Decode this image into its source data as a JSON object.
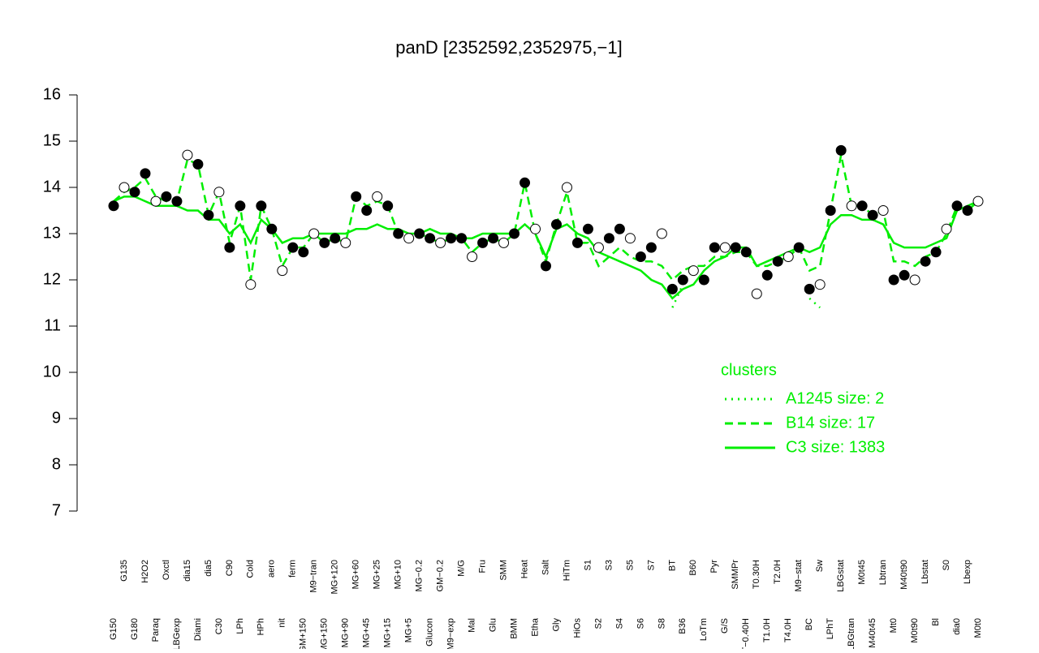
{
  "chart_data": {
    "type": "line",
    "title": "panD [2352592,2352975,−1]",
    "categories": [
      "G150",
      "G135",
      "G180",
      "H2O2",
      "Paraq",
      "Oxctl",
      "LBGexp",
      "dia15",
      "Diami",
      "dia5",
      "C30",
      "C90",
      "LPh",
      "Cold",
      "HPh",
      "aero",
      "nit",
      "ferm",
      "GM+150",
      "M9−tran",
      "MG+150",
      "MG+120",
      "MG+90",
      "MG+60",
      "MG+45",
      "MG+25",
      "MG+15",
      "MG+10",
      "MG+5",
      "MG−0.2",
      "Glucon",
      "GM−0.2",
      "M9−exp",
      "M/G",
      "Mal",
      "Fru",
      "Glu",
      "SMM",
      "BMM",
      "Heat",
      "Etha",
      "Salt",
      "Gly",
      "HiTm",
      "HiOs",
      "S1",
      "S2",
      "S3",
      "S4",
      "S5",
      "S6",
      "S7",
      "S8",
      "BT",
      "B36",
      "B60",
      "LoTm",
      "Pyr",
      "G/S",
      "SMMPr",
      "T−0.40H",
      "T0.30H",
      "T1.0H",
      "T2.0H",
      "T4.0H",
      "M9−stat",
      "BC",
      "Sw",
      "LPhT",
      "LBGstat",
      "LBGtran",
      "M0t45",
      "M40t45",
      "Lbtran",
      "Mt0",
      "M40t90",
      "M0t90",
      "Lbstat",
      "Bl",
      "S0",
      "dia0",
      "Lbexp",
      "M0t0"
    ],
    "values": [
      13.6,
      14.0,
      13.9,
      14.3,
      13.7,
      13.8,
      13.7,
      14.7,
      14.5,
      13.4,
      13.9,
      12.7,
      13.6,
      11.9,
      13.6,
      13.1,
      12.2,
      12.7,
      12.6,
      13.0,
      12.8,
      12.9,
      12.8,
      13.8,
      13.5,
      13.8,
      13.6,
      13.0,
      12.9,
      13.0,
      12.9,
      12.8,
      12.9,
      12.9,
      12.5,
      12.8,
      12.9,
      12.8,
      13.0,
      14.1,
      13.1,
      12.3,
      13.2,
      14.0,
      12.8,
      13.1,
      12.7,
      12.9,
      13.1,
      12.9,
      12.5,
      12.7,
      13.0,
      11.8,
      12.0,
      12.2,
      12.0,
      12.7,
      12.7,
      12.7,
      12.6,
      11.7,
      12.1,
      12.4,
      12.5,
      12.7,
      11.8,
      11.9,
      13.5,
      14.8,
      13.6,
      13.6,
      13.4,
      13.5,
      12.0,
      12.1,
      12.0,
      12.4,
      12.6,
      13.1,
      13.6,
      13.5,
      13.7
    ],
    "point_color": "#000000",
    "series": [
      {
        "name": "A1245 size: 2",
        "color": "#00ee00",
        "style": "dotted",
        "values": [
          null,
          null,
          null,
          null,
          null,
          null,
          null,
          null,
          null,
          null,
          null,
          null,
          null,
          null,
          null,
          null,
          null,
          null,
          null,
          null,
          null,
          null,
          null,
          null,
          null,
          null,
          null,
          null,
          null,
          null,
          null,
          null,
          null,
          null,
          null,
          null,
          null,
          null,
          null,
          null,
          null,
          null,
          null,
          null,
          null,
          null,
          null,
          null,
          null,
          null,
          null,
          null,
          null,
          11.4,
          11.9,
          null,
          null,
          null,
          null,
          null,
          null,
          null,
          null,
          null,
          null,
          null,
          11.6,
          11.4,
          null,
          null,
          null,
          null,
          null,
          null,
          null,
          null,
          null,
          null,
          null,
          null,
          null,
          null,
          null
        ]
      },
      {
        "name": "B14 size: 17",
        "color": "#00ee00",
        "style": "dashed",
        "values": [
          13.7,
          13.9,
          14.0,
          14.2,
          13.8,
          13.7,
          13.7,
          14.6,
          14.5,
          13.4,
          13.9,
          12.8,
          13.6,
          12.0,
          13.6,
          13.1,
          12.3,
          12.7,
          12.7,
          13.0,
          12.8,
          12.9,
          12.8,
          13.8,
          13.6,
          13.7,
          13.6,
          13.0,
          12.9,
          13.0,
          12.9,
          12.8,
          12.9,
          12.9,
          12.6,
          12.8,
          12.9,
          12.8,
          13.0,
          14.1,
          13.0,
          12.4,
          13.2,
          13.9,
          12.8,
          12.8,
          12.3,
          12.5,
          12.7,
          12.5,
          12.4,
          12.4,
          12.3,
          12.0,
          12.2,
          12.3,
          12.3,
          12.5,
          12.5,
          12.6,
          12.6,
          12.3,
          12.3,
          12.4,
          12.5,
          12.7,
          12.2,
          12.3,
          13.5,
          14.7,
          13.6,
          13.6,
          13.4,
          13.5,
          12.4,
          12.4,
          12.3,
          12.5,
          12.6,
          13.0,
          13.6,
          13.5,
          13.7
        ]
      },
      {
        "name": "C3 size: 1383",
        "color": "#00ee00",
        "style": "solid",
        "values": [
          13.7,
          13.8,
          13.8,
          13.7,
          13.6,
          13.6,
          13.6,
          13.5,
          13.5,
          13.3,
          13.3,
          13.0,
          13.2,
          12.8,
          13.3,
          13.1,
          12.8,
          12.9,
          12.9,
          13.0,
          13.0,
          13.0,
          13.0,
          13.1,
          13.1,
          13.2,
          13.1,
          13.1,
          13.0,
          13.0,
          13.1,
          13.0,
          13.0,
          12.9,
          12.9,
          13.0,
          13.0,
          13.0,
          13.0,
          13.2,
          13.0,
          12.5,
          13.1,
          13.2,
          13.0,
          12.9,
          12.6,
          12.5,
          12.4,
          12.3,
          12.2,
          12.0,
          11.9,
          11.6,
          11.8,
          11.9,
          12.2,
          12.4,
          12.5,
          12.7,
          12.7,
          12.3,
          12.4,
          12.5,
          12.6,
          12.7,
          12.6,
          12.7,
          13.2,
          13.4,
          13.4,
          13.3,
          13.3,
          13.2,
          12.8,
          12.7,
          12.7,
          12.7,
          12.8,
          12.9,
          13.5,
          13.6,
          13.7
        ]
      }
    ],
    "legend_title": "clusters",
    "ylim": [
      7,
      16
    ],
    "yticks": [
      7,
      8,
      9,
      10,
      11,
      12,
      13,
      14,
      15,
      16
    ]
  }
}
